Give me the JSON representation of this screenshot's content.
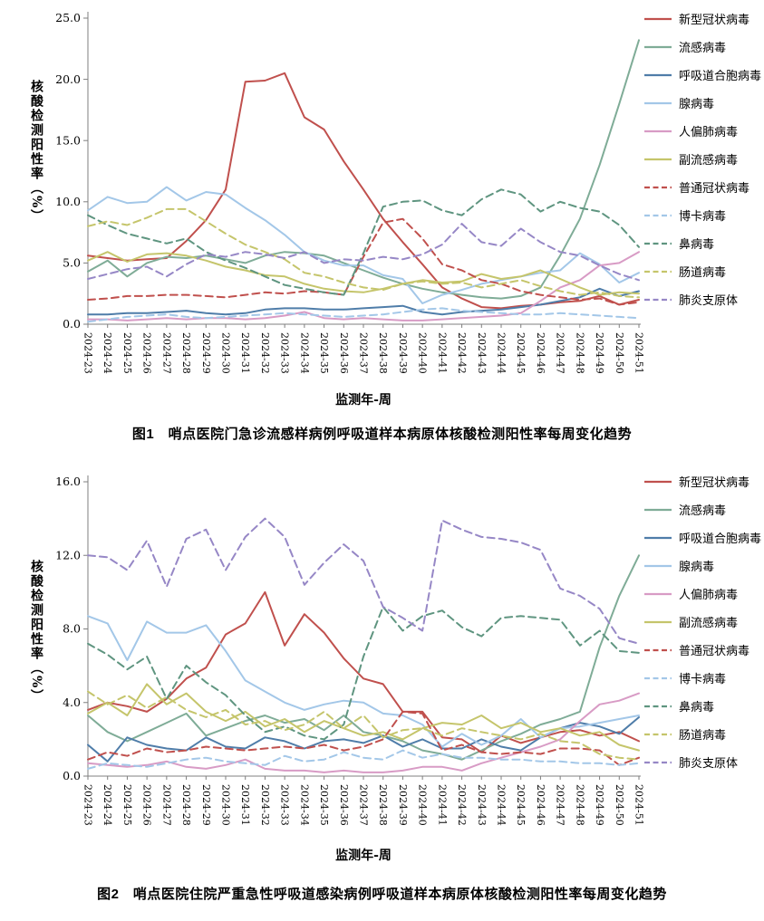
{
  "page_background": "#ffffff",
  "axis_color": "#7f7f7f",
  "charts": [
    {
      "caption": "图1　哨点医院门急诊流感样病例呼吸道样本病原体核酸检测阳性率每周变化趋势",
      "y_axis": {
        "label": "核酸检测阳性率（%）",
        "min": 0,
        "max": 25,
        "step": 5,
        "tick_labels": [
          "0.0",
          "5.0",
          "10.0",
          "15.0",
          "20.0",
          "25.0"
        ]
      },
      "x_axis": {
        "label": "监测年-周",
        "categories": [
          "2024-23",
          "2024-24",
          "2024-25",
          "2024-26",
          "2024-27",
          "2024-28",
          "2024-29",
          "2024-30",
          "2024-31",
          "2024-32",
          "2024-33",
          "2024-34",
          "2024-35",
          "2024-36",
          "2024-37",
          "2024-38",
          "2024-39",
          "2024-40",
          "2024-41",
          "2024-42",
          "2024-43",
          "2024-44",
          "2024-45",
          "2024-46",
          "2024-47",
          "2024-48",
          "2024-49",
          "2024-50",
          "2024-51"
        ]
      },
      "legend_position": "right",
      "chart_data": {
        "type": "line",
        "title": "图1　哨点医院门急诊流感样病例呼吸道样本病原体核酸检测阳性率每周变化趋势",
        "xlabel": "监测年-周",
        "ylabel": "核酸检测阳性率（%）",
        "ylim": [
          0,
          25
        ],
        "grid": false
      },
      "series": [
        {
          "key": "covid",
          "name": "新型冠状病毒",
          "color": "#C0504D",
          "style": "solid",
          "values": [
            5.6,
            5.4,
            5.2,
            5.3,
            5.4,
            6.8,
            8.5,
            11.0,
            19.8,
            19.9,
            20.5,
            16.9,
            15.9,
            13.3,
            11.0,
            8.6,
            6.7,
            4.9,
            3.0,
            2.1,
            1.4,
            1.3,
            1.5,
            1.6,
            1.8,
            1.9,
            2.3,
            1.6,
            2.0
          ]
        },
        {
          "key": "flu",
          "name": "流感病毒",
          "color": "#7FAC97",
          "style": "solid",
          "values": [
            4.3,
            5.2,
            3.9,
            5.0,
            5.5,
            5.4,
            5.6,
            5.3,
            5.0,
            5.6,
            5.9,
            5.8,
            5.6,
            5.0,
            4.4,
            3.8,
            3.3,
            2.9,
            2.6,
            2.4,
            2.2,
            2.1,
            2.3,
            3.0,
            5.6,
            8.6,
            13.0,
            18.0,
            23.2
          ]
        },
        {
          "key": "rsv",
          "name": "呼吸道合胞病毒",
          "color": "#4F7DA9",
          "style": "solid",
          "values": [
            0.8,
            0.8,
            0.9,
            0.9,
            1.0,
            1.1,
            0.9,
            0.8,
            0.9,
            1.2,
            1.3,
            1.3,
            1.2,
            1.2,
            1.3,
            1.4,
            1.5,
            1.0,
            0.8,
            1.0,
            1.1,
            1.2,
            1.4,
            1.6,
            1.9,
            2.2,
            2.9,
            2.3,
            2.7
          ]
        },
        {
          "key": "adv",
          "name": "腺病毒",
          "color": "#A3C7E8",
          "style": "solid",
          "values": [
            9.3,
            10.4,
            9.9,
            10.0,
            11.2,
            10.1,
            10.8,
            10.6,
            9.5,
            8.5,
            7.3,
            5.9,
            5.2,
            4.8,
            4.8,
            4.0,
            3.7,
            1.7,
            2.4,
            2.8,
            3.3,
            3.6,
            3.9,
            4.2,
            4.4,
            5.8,
            4.9,
            3.4,
            4.2
          ]
        },
        {
          "key": "hmpv",
          "name": "人偏肺病毒",
          "color": "#D89BC5",
          "style": "solid",
          "values": [
            0.4,
            0.4,
            0.3,
            0.4,
            0.5,
            0.4,
            0.5,
            0.5,
            0.4,
            0.5,
            0.7,
            1.0,
            0.5,
            0.4,
            0.5,
            0.4,
            0.3,
            0.3,
            0.4,
            0.5,
            0.6,
            0.7,
            0.9,
            1.9,
            3.0,
            3.6,
            4.8,
            5.0,
            5.9
          ]
        },
        {
          "key": "piv",
          "name": "副流感病毒",
          "color": "#C5C56B",
          "style": "solid",
          "values": [
            5.2,
            5.9,
            5.1,
            5.7,
            5.8,
            5.6,
            5.2,
            4.7,
            4.4,
            4.0,
            3.9,
            3.3,
            2.9,
            2.7,
            2.6,
            2.9,
            3.3,
            3.6,
            3.4,
            3.5,
            4.1,
            3.7,
            3.9,
            4.4,
            3.7,
            3.0,
            2.4,
            2.6,
            2.5
          ]
        },
        {
          "key": "hcov",
          "name": "普通冠状病毒",
          "color": "#C0504D",
          "style": "dashed",
          "values": [
            2.0,
            2.1,
            2.3,
            2.3,
            2.4,
            2.4,
            2.3,
            2.2,
            2.4,
            2.6,
            2.5,
            2.7,
            2.6,
            2.4,
            5.5,
            8.3,
            8.6,
            7.0,
            4.9,
            4.4,
            3.6,
            3.3,
            2.7,
            2.4,
            2.2,
            2.0,
            2.1,
            1.6,
            1.8
          ]
        },
        {
          "key": "boca",
          "name": "博卡病毒",
          "color": "#A3C7E8",
          "style": "dashed",
          "values": [
            0.2,
            0.4,
            0.6,
            0.7,
            0.8,
            0.6,
            0.5,
            0.6,
            0.7,
            0.8,
            0.9,
            0.8,
            0.7,
            0.6,
            0.7,
            0.8,
            1.0,
            1.2,
            1.3,
            1.1,
            1.0,
            0.9,
            0.8,
            0.8,
            0.9,
            0.8,
            0.7,
            0.6,
            0.5
          ]
        },
        {
          "key": "rhino",
          "name": "鼻病毒",
          "color": "#5F9580",
          "style": "dashed",
          "values": [
            8.9,
            8.1,
            7.4,
            7.0,
            6.6,
            7.0,
            5.9,
            5.2,
            4.6,
            3.9,
            3.2,
            2.9,
            2.6,
            2.4,
            5.8,
            9.6,
            10.0,
            10.1,
            9.3,
            8.9,
            10.2,
            11.0,
            10.6,
            9.2,
            10.0,
            9.5,
            9.2,
            8.1,
            6.3
          ]
        },
        {
          "key": "ev",
          "name": "肠道病毒",
          "color": "#C5C56B",
          "style": "dashed",
          "values": [
            8.0,
            8.4,
            8.1,
            8.7,
            9.4,
            9.4,
            8.4,
            7.4,
            6.5,
            5.9,
            5.3,
            4.2,
            3.9,
            3.4,
            3.0,
            2.8,
            3.3,
            3.5,
            3.3,
            3.4,
            3.0,
            3.3,
            3.6,
            3.1,
            2.7,
            2.4,
            2.6,
            2.3,
            2.2
          ]
        },
        {
          "key": "mp",
          "name": "肺炎支原体",
          "color": "#9687C6",
          "style": "dashed",
          "values": [
            3.7,
            4.1,
            4.5,
            4.7,
            3.9,
            4.9,
            5.7,
            5.5,
            5.9,
            5.7,
            5.4,
            5.9,
            5.0,
            5.3,
            5.2,
            5.5,
            5.3,
            5.7,
            6.5,
            8.2,
            6.7,
            6.4,
            7.8,
            6.7,
            5.9,
            5.6,
            4.8,
            4.1,
            3.6
          ]
        }
      ]
    },
    {
      "caption": "图2　哨点医院住院严重急性呼吸道感染病例呼吸道样本病原体核酸检测阳性率每周变化趋势",
      "y_axis": {
        "label": "核酸检测阳性率（%）",
        "min": 0,
        "max": 16,
        "step": 4,
        "tick_labels": [
          "0.0",
          "4.0",
          "8.0",
          "12.0",
          "16.0"
        ]
      },
      "x_axis": {
        "label": "监测年-周",
        "categories": [
          "2024-23",
          "2024-24",
          "2024-25",
          "2024-26",
          "2024-27",
          "2024-28",
          "2024-29",
          "2024-30",
          "2024-31",
          "2024-32",
          "2024-33",
          "2024-34",
          "2024-35",
          "2024-36",
          "2024-37",
          "2024-38",
          "2024-39",
          "2024-40",
          "2024-41",
          "2024-42",
          "2024-43",
          "2024-44",
          "2024-45",
          "2024-46",
          "2024-47",
          "2024-48",
          "2024-49",
          "2024-50",
          "2024-51"
        ]
      },
      "legend_position": "right",
      "chart_data": {
        "type": "line",
        "title": "图2　哨点医院住院严重急性呼吸道感染病例呼吸道样本病原体核酸检测阳性率每周变化趋势",
        "xlabel": "监测年-周",
        "ylabel": "核酸检测阳性率（%）",
        "ylim": [
          0,
          16
        ],
        "grid": false
      },
      "series": [
        {
          "key": "covid",
          "name": "新型冠状病毒",
          "color": "#C0504D",
          "style": "solid",
          "values": [
            3.6,
            4.0,
            3.8,
            3.5,
            4.2,
            5.3,
            5.9,
            7.7,
            8.3,
            10.0,
            7.1,
            8.8,
            7.8,
            6.4,
            5.3,
            5.0,
            3.5,
            3.5,
            2.1,
            2.0,
            1.3,
            2.2,
            1.8,
            2.1,
            2.4,
            2.5,
            2.2,
            2.4,
            1.9
          ]
        },
        {
          "key": "flu",
          "name": "流感病毒",
          "color": "#7FAC97",
          "style": "solid",
          "values": [
            3.3,
            2.4,
            1.9,
            2.4,
            2.9,
            3.4,
            2.2,
            2.6,
            3.0,
            3.3,
            2.9,
            3.1,
            2.5,
            3.3,
            2.4,
            2.2,
            1.9,
            1.4,
            1.2,
            0.9,
            1.4,
            1.9,
            2.3,
            2.8,
            3.1,
            3.5,
            7.0,
            9.8,
            12.0
          ]
        },
        {
          "key": "rsv",
          "name": "呼吸道合胞病毒",
          "color": "#4F7DA9",
          "style": "solid",
          "values": [
            1.7,
            0.8,
            2.1,
            1.7,
            1.5,
            1.4,
            2.1,
            1.6,
            1.5,
            2.1,
            1.9,
            1.5,
            1.9,
            2.0,
            1.8,
            2.2,
            1.6,
            2.0,
            1.5,
            1.5,
            2.0,
            1.6,
            1.4,
            2.1,
            2.6,
            2.9,
            2.7,
            2.3,
            3.2
          ]
        },
        {
          "key": "adv",
          "name": "腺病毒",
          "color": "#A3C7E8",
          "style": "solid",
          "values": [
            8.7,
            8.3,
            6.3,
            8.4,
            7.8,
            7.8,
            8.2,
            6.8,
            5.2,
            4.6,
            4.0,
            3.6,
            3.9,
            4.1,
            4.0,
            3.4,
            3.3,
            2.8,
            1.6,
            2.3,
            1.7,
            2.2,
            3.1,
            2.1,
            2.6,
            2.7,
            2.9,
            3.1,
            3.3
          ]
        },
        {
          "key": "hmpv",
          "name": "人偏肺病毒",
          "color": "#D89BC5",
          "style": "solid",
          "values": [
            0.7,
            0.6,
            0.5,
            0.6,
            0.8,
            0.5,
            0.4,
            0.6,
            0.9,
            0.4,
            0.3,
            0.3,
            0.2,
            0.3,
            0.2,
            0.2,
            0.3,
            0.5,
            0.5,
            0.3,
            0.7,
            1.0,
            1.3,
            1.6,
            2.0,
            3.0,
            3.9,
            4.1,
            4.5
          ]
        },
        {
          "key": "piv",
          "name": "副流感病毒",
          "color": "#C5C56B",
          "style": "solid",
          "values": [
            3.4,
            4.0,
            3.3,
            5.0,
            3.9,
            4.5,
            3.5,
            3.0,
            3.5,
            2.7,
            3.1,
            2.4,
            3.0,
            2.6,
            2.2,
            2.4,
            2.0,
            2.6,
            2.9,
            2.8,
            3.3,
            2.6,
            2.9,
            2.4,
            2.6,
            2.2,
            2.4,
            1.7,
            1.4
          ]
        },
        {
          "key": "hcov",
          "name": "普通冠状病毒",
          "color": "#C0504D",
          "style": "dashed",
          "values": [
            0.9,
            1.3,
            1.1,
            1.5,
            1.3,
            1.4,
            1.6,
            1.5,
            1.4,
            1.5,
            1.6,
            1.5,
            1.7,
            1.4,
            1.6,
            2.0,
            3.5,
            3.4,
            1.4,
            1.7,
            1.3,
            1.2,
            1.3,
            1.2,
            1.5,
            1.5,
            1.4,
            0.6,
            1.0
          ]
        },
        {
          "key": "boca",
          "name": "博卡病毒",
          "color": "#A3C7E8",
          "style": "dashed",
          "values": [
            0.4,
            0.7,
            0.6,
            0.5,
            0.7,
            0.9,
            1.0,
            0.8,
            0.7,
            0.6,
            1.1,
            0.8,
            0.9,
            1.3,
            1.0,
            0.9,
            1.4,
            1.0,
            1.2,
            1.0,
            1.0,
            0.9,
            0.9,
            0.8,
            0.8,
            0.7,
            0.7,
            0.6,
            0.7
          ]
        },
        {
          "key": "rhino",
          "name": "鼻病毒",
          "color": "#5F9580",
          "style": "dashed",
          "values": [
            7.2,
            6.6,
            5.8,
            6.5,
            4.2,
            6.0,
            5.1,
            4.4,
            3.3,
            2.4,
            2.7,
            2.2,
            2.0,
            2.8,
            6.5,
            9.2,
            7.9,
            8.7,
            9.0,
            8.1,
            7.6,
            8.6,
            8.7,
            8.6,
            8.5,
            7.1,
            7.9,
            6.8,
            6.7
          ]
        },
        {
          "key": "ev",
          "name": "肠道病毒",
          "color": "#C5C56B",
          "style": "dashed",
          "values": [
            4.6,
            3.9,
            4.4,
            3.7,
            4.3,
            3.6,
            3.2,
            3.6,
            2.8,
            3.0,
            2.5,
            2.8,
            3.5,
            2.6,
            3.3,
            2.1,
            2.5,
            2.6,
            2.2,
            2.6,
            2.4,
            2.2,
            2.0,
            2.3,
            1.9,
            1.8,
            1.2,
            1.0,
            0.9
          ]
        },
        {
          "key": "mp",
          "name": "肺炎支原体",
          "color": "#9687C6",
          "style": "dashed",
          "values": [
            12.0,
            11.9,
            11.2,
            12.8,
            10.3,
            12.9,
            13.4,
            11.2,
            13.0,
            14.0,
            13.0,
            10.4,
            11.6,
            12.6,
            11.7,
            9.2,
            8.6,
            7.9,
            13.9,
            13.4,
            13.0,
            12.9,
            12.7,
            12.3,
            10.2,
            9.8,
            9.1,
            7.5,
            7.2
          ]
        }
      ]
    }
  ]
}
